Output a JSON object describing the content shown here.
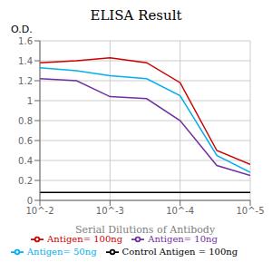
{
  "chart_data": {
    "type": "line",
    "title": "ELISA Result",
    "x_label": "Serial Dilutions of Antibody",
    "y_label": "O.D.",
    "x": [
      0.01,
      0.003,
      0.001,
      0.0003,
      0.0001,
      3e-05,
      1e-05
    ],
    "series": [
      {
        "name": "Control Antigen = 100ng",
        "color": "#000000",
        "values": [
          0.08,
          0.08,
          0.08,
          0.08,
          0.08,
          0.08,
          0.08
        ]
      },
      {
        "name": "Antigen= 10ng",
        "color": "#7030A0",
        "values": [
          1.22,
          1.2,
          1.04,
          1.02,
          0.8,
          0.35,
          0.25
        ]
      },
      {
        "name": "Antigen= 50ng",
        "color": "#00B0F0",
        "values": [
          1.33,
          1.3,
          1.25,
          1.22,
          1.05,
          0.45,
          0.28
        ]
      },
      {
        "name": "Antigen= 100ng",
        "color": "#CC0000",
        "values": [
          1.38,
          1.4,
          1.43,
          1.38,
          1.18,
          0.5,
          0.36
        ]
      }
    ],
    "xlim": [
      0.01,
      1e-05
    ],
    "ylim": [
      0,
      1.6
    ],
    "xticks": [
      {
        "value": 0.01,
        "label": "10^-2"
      },
      {
        "value": 0.001,
        "label": "10^-3"
      },
      {
        "value": 0.0001,
        "label": "10^-4"
      },
      {
        "value": 1e-05,
        "label": "10^-5"
      }
    ],
    "yticks": [
      0,
      0.2,
      0.4,
      0.6,
      0.8,
      1,
      1.2,
      1.4,
      1.6
    ],
    "log": "x",
    "grid": true,
    "legend": "bottom"
  }
}
